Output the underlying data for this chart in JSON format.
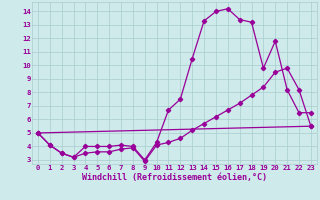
{
  "xlabel": "Windchill (Refroidissement éolien,°C)",
  "background_color": "#ceeaea",
  "grid_color": "#aacccc",
  "line_color": "#990099",
  "xlim": [
    -0.5,
    23.5
  ],
  "ylim": [
    2.7,
    14.7
  ],
  "xticks": [
    0,
    1,
    2,
    3,
    4,
    5,
    6,
    7,
    8,
    9,
    10,
    11,
    12,
    13,
    14,
    15,
    16,
    17,
    18,
    19,
    20,
    21,
    22,
    23
  ],
  "yticks": [
    3,
    4,
    5,
    6,
    7,
    8,
    9,
    10,
    11,
    12,
    13,
    14
  ],
  "series1_x": [
    0,
    1,
    2,
    3,
    4,
    5,
    6,
    7,
    8,
    9,
    10,
    11,
    12,
    13,
    14,
    15,
    16,
    17,
    18,
    19,
    20,
    21,
    22,
    23
  ],
  "series1_y": [
    5.0,
    4.1,
    3.5,
    3.2,
    4.0,
    4.0,
    4.0,
    4.1,
    4.0,
    3.0,
    4.3,
    6.7,
    7.5,
    10.5,
    13.3,
    14.0,
    14.2,
    13.4,
    13.2,
    9.8,
    11.8,
    8.2,
    6.5,
    6.5
  ],
  "series2_x": [
    0,
    1,
    2,
    3,
    4,
    5,
    6,
    7,
    8,
    9,
    10,
    11,
    12,
    13,
    14,
    15,
    16,
    17,
    18,
    19,
    20,
    21,
    22,
    23
  ],
  "series2_y": [
    5.0,
    4.1,
    3.5,
    3.2,
    3.5,
    3.6,
    3.6,
    3.8,
    3.9,
    2.9,
    4.1,
    4.3,
    4.6,
    5.2,
    5.7,
    6.2,
    6.7,
    7.2,
    7.8,
    8.4,
    9.5,
    9.8,
    8.2,
    5.5
  ],
  "series3_x": [
    0,
    23
  ],
  "series3_y": [
    5.0,
    5.5
  ],
  "marker": "D",
  "markersize": 2.2,
  "linewidth": 0.9,
  "tick_fontsize": 5.2,
  "xlabel_fontsize": 6.0
}
